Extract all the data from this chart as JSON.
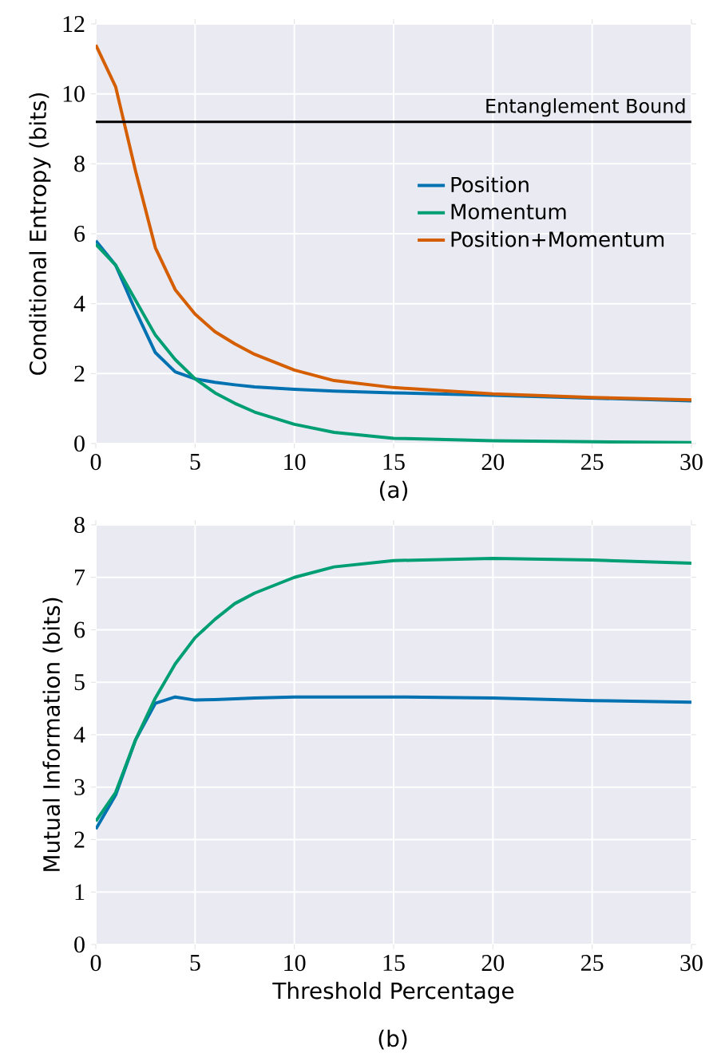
{
  "chart_data": [
    {
      "type": "line",
      "xlabel": "(a)",
      "ylabel": "Conditional Entropy (bits)",
      "xlim": [
        0,
        30
      ],
      "ylim": [
        0,
        12
      ],
      "xticks": [
        0,
        5,
        10,
        15,
        20,
        25,
        30
      ],
      "yticks": [
        0,
        2,
        4,
        6,
        8,
        10,
        12
      ],
      "grid": true,
      "legend": "right",
      "ref_lines": [
        {
          "axis": "y",
          "value": 9.2,
          "label": "Entanglement Bound",
          "color": "#000000"
        }
      ],
      "series": [
        {
          "name": "Position",
          "color": "#0072b2",
          "x": [
            0,
            1,
            2,
            3,
            4,
            5,
            6,
            7,
            8,
            10,
            12,
            15,
            20,
            25,
            30
          ],
          "values": [
            5.8,
            5.1,
            3.8,
            2.6,
            2.05,
            1.85,
            1.75,
            1.68,
            1.62,
            1.55,
            1.5,
            1.45,
            1.38,
            1.3,
            1.22
          ]
        },
        {
          "name": "Momentum",
          "color": "#009e73",
          "x": [
            0,
            1,
            2,
            3,
            4,
            5,
            6,
            7,
            8,
            10,
            12,
            15,
            20,
            25,
            30
          ],
          "values": [
            5.7,
            5.1,
            4.1,
            3.1,
            2.4,
            1.85,
            1.45,
            1.15,
            0.9,
            0.55,
            0.32,
            0.15,
            0.08,
            0.05,
            0.03
          ]
        },
        {
          "name": "Position+Momentum",
          "color": "#d55e00",
          "x": [
            0,
            1,
            2,
            3,
            4,
            5,
            6,
            7,
            8,
            10,
            12,
            15,
            20,
            25,
            30
          ],
          "values": [
            11.4,
            10.2,
            7.8,
            5.6,
            4.4,
            3.7,
            3.2,
            2.85,
            2.55,
            2.1,
            1.8,
            1.6,
            1.42,
            1.32,
            1.25
          ]
        }
      ]
    },
    {
      "type": "line",
      "xlabel": "Threshold Percentage",
      "ylabel": "Mutual Information (bits)",
      "annotations": [
        "(b)"
      ],
      "xlim": [
        0,
        30
      ],
      "ylim": [
        0,
        8
      ],
      "xticks": [
        0,
        5,
        10,
        15,
        20,
        25,
        30
      ],
      "yticks": [
        0,
        1,
        2,
        3,
        4,
        5,
        6,
        7,
        8
      ],
      "grid": true,
      "series": [
        {
          "color": "#0072b2",
          "x": [
            0,
            1,
            2,
            3,
            4,
            5,
            6,
            8,
            10,
            15,
            20,
            25,
            30
          ],
          "values": [
            2.2,
            2.85,
            3.9,
            4.6,
            4.72,
            4.66,
            4.67,
            4.7,
            4.72,
            4.72,
            4.7,
            4.65,
            4.62
          ]
        },
        {
          "color": "#009e73",
          "x": [
            0,
            1,
            2,
            3,
            4,
            5,
            6,
            7,
            8,
            10,
            12,
            15,
            20,
            25,
            30
          ],
          "values": [
            2.35,
            2.9,
            3.9,
            4.7,
            5.35,
            5.85,
            6.2,
            6.5,
            6.7,
            7.0,
            7.2,
            7.32,
            7.36,
            7.33,
            7.27
          ]
        }
      ]
    }
  ]
}
